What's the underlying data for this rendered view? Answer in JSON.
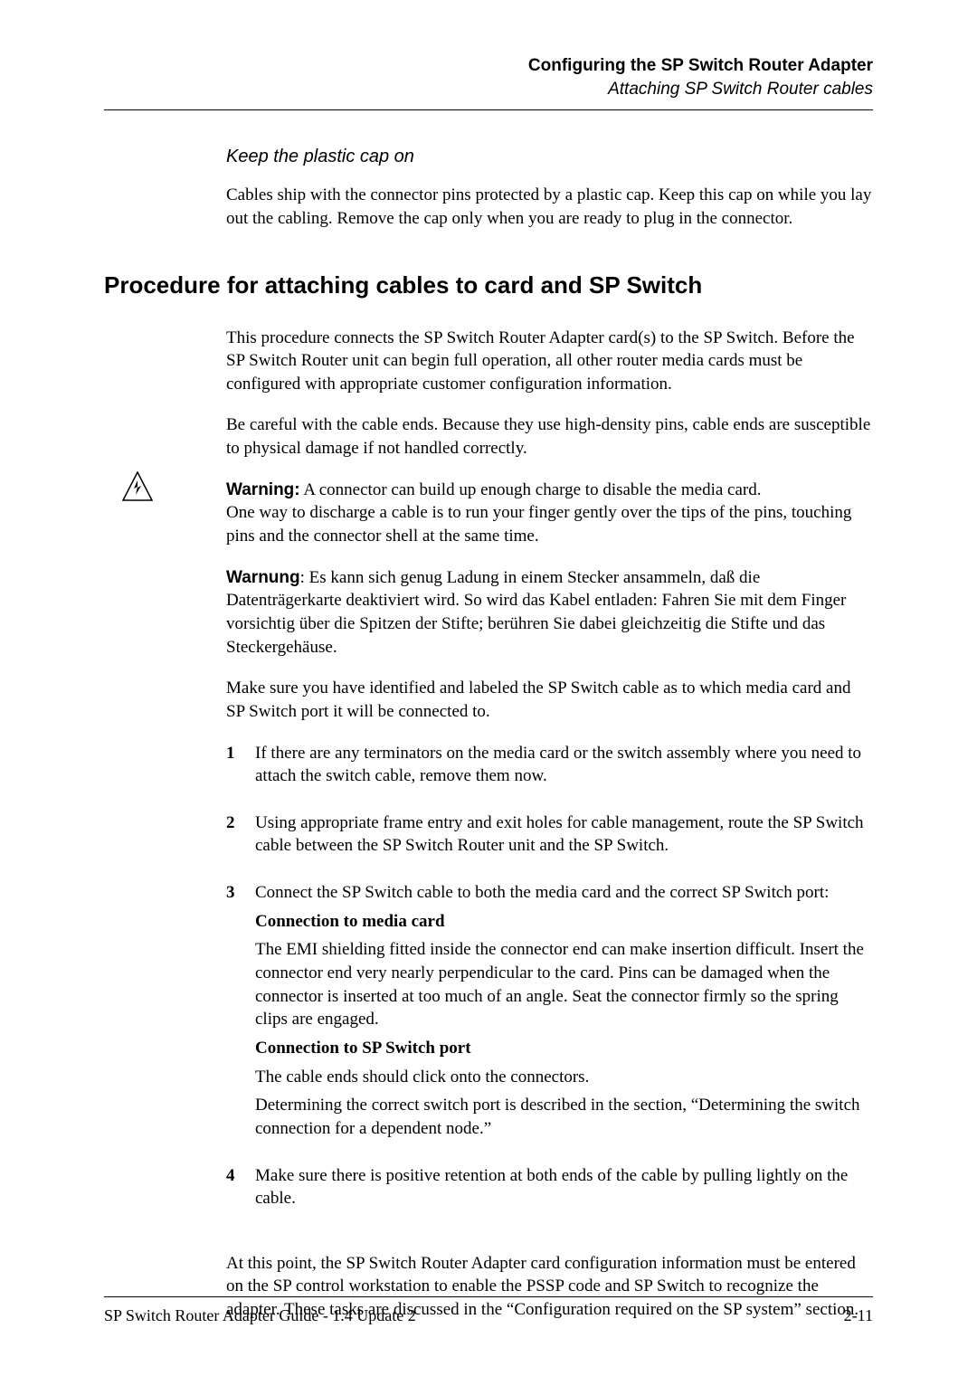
{
  "header": {
    "title_bold": "Configuring the SP Switch Router Adapter",
    "subtitle_italic": "Attaching SP Switch Router cables"
  },
  "section_keep_cap": {
    "heading": "Keep the plastic cap on",
    "body": "Cables ship with the connector pins protected by a plastic cap. Keep this cap on while you lay out the cabling. Remove the cap only when you are ready to plug in the connector."
  },
  "section_procedure": {
    "heading": "Procedure for attaching cables to card and SP Switch",
    "intro1": "This procedure connects the SP Switch Router Adapter card(s) to the SP Switch. Before the SP Switch Router unit can begin full operation, all other router media cards must be configured with appropriate customer configuration information.",
    "intro2": "Be careful with the cable ends. Because they use high-density pins, cable ends are susceptible to physical damage if not handled correctly.",
    "warning_label": "Warning:",
    "warning_text_line1": " A connector can build up enough charge to disable the media card.",
    "warning_text_line2": "One way to discharge a cable is to run your finger gently over the tips of the pins, touching pins and the connector shell at the same time.",
    "warnung_label": "Warnung",
    "warnung_text": ":   Es kann sich genug Ladung in einem Stecker ansammeln, daß die Datenträgerkarte deaktiviert wird.  So wird das Kabel entladen:  Fahren Sie mit dem Finger vorsichtig über die Spitzen der Stifte; berühren Sie dabei gleichzeitig die Stifte und das Steckergehäuse.",
    "identify_text": "Make sure you have identified and labeled the SP Switch cable as to which media card and SP Switch port it will be connected to.",
    "steps": [
      {
        "num": "1",
        "blocks": [
          {
            "type": "p",
            "text": "If there are any terminators on the media card or the switch assembly where you need to attach the switch cable, remove them now."
          }
        ]
      },
      {
        "num": "2",
        "blocks": [
          {
            "type": "p",
            "text": "Using appropriate frame entry and exit holes for cable management, route the SP Switch cable between the SP Switch Router unit and the SP Switch."
          }
        ]
      },
      {
        "num": "3",
        "blocks": [
          {
            "type": "p",
            "text": "Connect the SP Switch cable to both the media card and the correct SP Switch port:"
          },
          {
            "type": "b",
            "text": "Connection to media card"
          },
          {
            "type": "p",
            "text": "The EMI shielding fitted inside the connector end can make insertion difficult. Insert the connector end very nearly perpendicular to the card. Pins can be damaged when the connector is inserted at too much of an angle. Seat the connector firmly so the spring clips are engaged."
          },
          {
            "type": "b",
            "text": "Connection to SP Switch port"
          },
          {
            "type": "p",
            "text": "The cable ends should click onto the connectors."
          },
          {
            "type": "p",
            "text": "Determining the correct switch port is described in the section, “Determining the switch connection for a dependent node.”"
          }
        ]
      },
      {
        "num": "4",
        "blocks": [
          {
            "type": "p",
            "text": "Make sure there is positive retention at both ends of the cable by pulling lightly on the cable."
          }
        ]
      }
    ],
    "closing": "At this point, the SP Switch Router Adapter card configuration information must be entered on the SP control workstation to enable the PSSP code and SP Switch to recognize the adapter. These tasks are discussed in the “Configuration required on the SP system” section."
  },
  "footer": {
    "left": "SP Switch Router Adapter Guide - 1.4 Update 2",
    "right": "2-11"
  }
}
